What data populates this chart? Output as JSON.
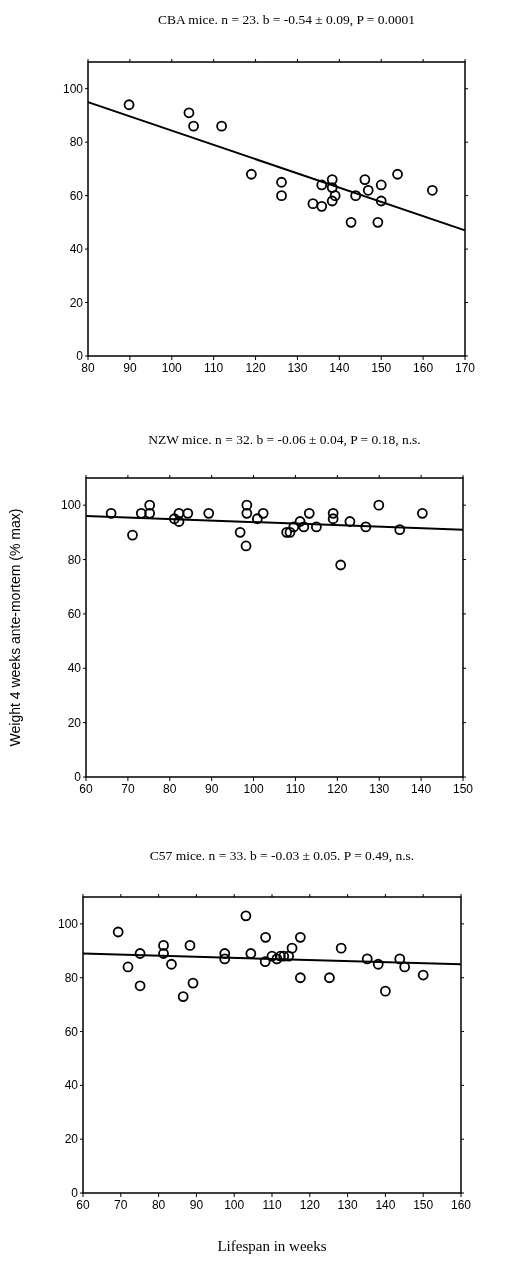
{
  "chart_data": [
    {
      "type": "scatter",
      "title": "CBA mice.  n = 23.  b = -0.54 ± 0.09,  P = 0.0001",
      "xlim": [
        80,
        170
      ],
      "xticks": [
        80,
        90,
        100,
        110,
        120,
        130,
        140,
        150,
        160,
        170
      ],
      "ylim": [
        0,
        110
      ],
      "yticks": [
        0,
        20,
        40,
        60,
        80,
        100
      ],
      "series": [
        {
          "marker": "circle",
          "color": "#000000",
          "x": [
            89.8,
            104.1,
            105.2,
            111.9,
            119.0,
            126.2,
            126.2,
            133.7,
            135.8,
            135.8,
            138.3,
            138.3,
            138.3,
            139.0,
            142.8,
            143.9,
            146.1,
            146.9,
            149.2,
            150.0,
            150.0,
            153.9,
            162.2
          ],
          "values": [
            94,
            91,
            86,
            86,
            68,
            65,
            60,
            57,
            64,
            56,
            66,
            63,
            58,
            60,
            50,
            60,
            66,
            62,
            50,
            64,
            58,
            68,
            62
          ]
        },
        {
          "type": "line",
          "marker": "none",
          "color": "#000000",
          "x": [
            80,
            170
          ],
          "values": [
            95,
            47
          ]
        }
      ]
    },
    {
      "type": "scatter",
      "title": "NZW mice.  n = 32.  b = -0.06 ± 0.04,  P = 0.18, n.s.",
      "ylabel": "Weight 4 weeks ante-mortem (% max)",
      "xlim": [
        60,
        150
      ],
      "xticks": [
        60,
        70,
        80,
        90,
        100,
        110,
        120,
        130,
        140,
        150
      ],
      "ylim": [
        0,
        110
      ],
      "yticks": [
        0,
        20,
        40,
        60,
        80,
        100
      ],
      "series": [
        {
          "marker": "circle",
          "color": "#000000",
          "x": [
            66.0,
            71.1,
            73.2,
            75.2,
            75.2,
            81.1,
            82.2,
            82.2,
            84.3,
            89.3,
            96.8,
            98.4,
            98.4,
            98.2,
            100.9,
            102.3,
            107.9,
            108.7,
            109.6,
            111.1,
            112.0,
            113.3,
            115.0,
            119.0,
            119.0,
            120.8,
            123.0,
            126.8,
            129.9,
            134.9,
            140.3
          ],
          "values": [
            97,
            89,
            97,
            100,
            97,
            95,
            94,
            97,
            97,
            97,
            90,
            100,
            97,
            85,
            95,
            97,
            90,
            90,
            92,
            94,
            92,
            97,
            92,
            97,
            95,
            78,
            94,
            92,
            100,
            91,
            97
          ]
        },
        {
          "type": "line",
          "marker": "none",
          "color": "#000000",
          "x": [
            60,
            150
          ],
          "values": [
            96,
            91
          ]
        }
      ]
    },
    {
      "type": "scatter",
      "title": "C57 mice.  n = 33.  b = -0.03 ± 0.05.  P = 0.49, n.s.",
      "xlabel": "Lifespan in weeks",
      "xlim": [
        60,
        160
      ],
      "xticks": [
        60,
        70,
        80,
        90,
        100,
        110,
        120,
        130,
        140,
        150,
        160
      ],
      "ylim": [
        0,
        110
      ],
      "yticks": [
        0,
        20,
        40,
        60,
        80,
        100
      ],
      "series": [
        {
          "marker": "circle",
          "color": "#000000",
          "x": [
            69.3,
            71.9,
            75.1,
            75.1,
            81.3,
            81.3,
            83.4,
            86.5,
            88.3,
            89.1,
            97.5,
            97.5,
            103.1,
            104.4,
            108.3,
            108.2,
            110.0,
            111.3,
            112.2,
            113.1,
            114.4,
            115.3,
            117.5,
            117.5,
            125.2,
            128.3,
            135.2,
            138.1,
            140.0,
            143.8,
            145.1,
            150.0
          ],
          "values": [
            97,
            84,
            77,
            89,
            92,
            89,
            85,
            73,
            92,
            78,
            89,
            87,
            103,
            89,
            95,
            86,
            88,
            87,
            88,
            88,
            88,
            91,
            95,
            80,
            80,
            91,
            87,
            85,
            75,
            87,
            84,
            81
          ]
        },
        {
          "type": "line",
          "marker": "none",
          "color": "#000000",
          "x": [
            60,
            160
          ],
          "values": [
            89,
            85
          ]
        }
      ]
    }
  ]
}
